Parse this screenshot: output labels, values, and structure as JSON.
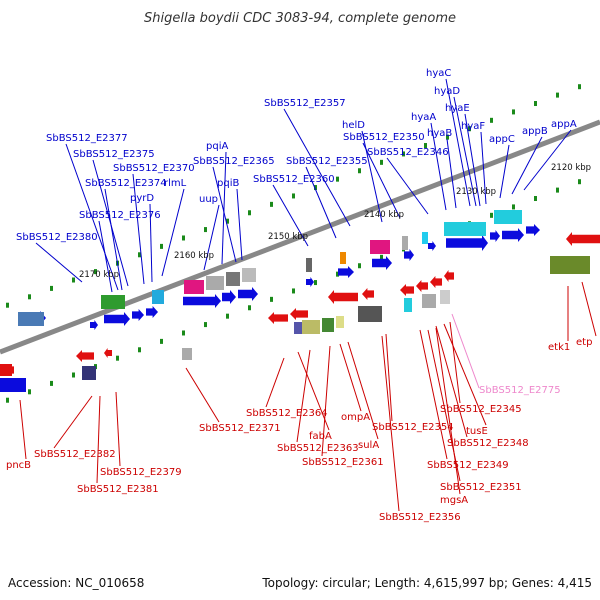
{
  "title": "Shigella boydii CDC 3083-94, complete genome",
  "footer": {
    "accession": "Accession: NC_010658",
    "summary": "Topology: circular; Length: 4,615,997 bp; Genes: 4,415"
  },
  "colors": {
    "forward_label": "#0000cc",
    "reverse_label": "#cc0000",
    "other_label": "#ee88cc",
    "forward_arrow": "#0b0bdd",
    "reverse_arrow": "#e01010",
    "backbone": "#888888",
    "tick": "#1a8a1a"
  },
  "scale": {
    "unit": "kbp",
    "ticks": [
      "2120 kbp",
      "2130 kbp",
      "2140 kbp",
      "2150 kbp",
      "2160 kbp",
      "2170 kbp"
    ]
  },
  "genes": {
    "forward": [
      "SbBS512_E2380",
      "SbBS512_E2376",
      "SbBS512_E2374",
      "SbBS512_E2375",
      "SbBS512_E2377",
      "SbBS512_E2370",
      "pyrD",
      "rlmL",
      "uup",
      "pqiA",
      "SbBS512_E2365",
      "pqiB",
      "SbBS512_E2360",
      "SbBS512_E2355",
      "SbBS512_E2357",
      "helD",
      "SbBS512_E2350",
      "SbBS512_E2346",
      "hyaA",
      "hyaB",
      "hyaC",
      "hyaD",
      "hyaE",
      "hyaF",
      "appC",
      "appB",
      "appA"
    ],
    "reverse": [
      "pncB",
      "SbBS512_E2382",
      "SbBS512_E2379",
      "SbBS512_E2381",
      "SbBS512_E2371",
      "SbBS512_E2364",
      "fabA",
      "SbBS512_E2363",
      "SbBS512_E2361",
      "ompA",
      "sulA",
      "SbBS512_E2354",
      "SbBS512_E2356",
      "SbBS512_E2351",
      "mgsA",
      "SbBS512_E2349",
      "SbBS512_E2348",
      "tusE",
      "SbBS512_E2345",
      "etk1",
      "etp"
    ],
    "other": [
      "SbBS512_E2775"
    ]
  }
}
